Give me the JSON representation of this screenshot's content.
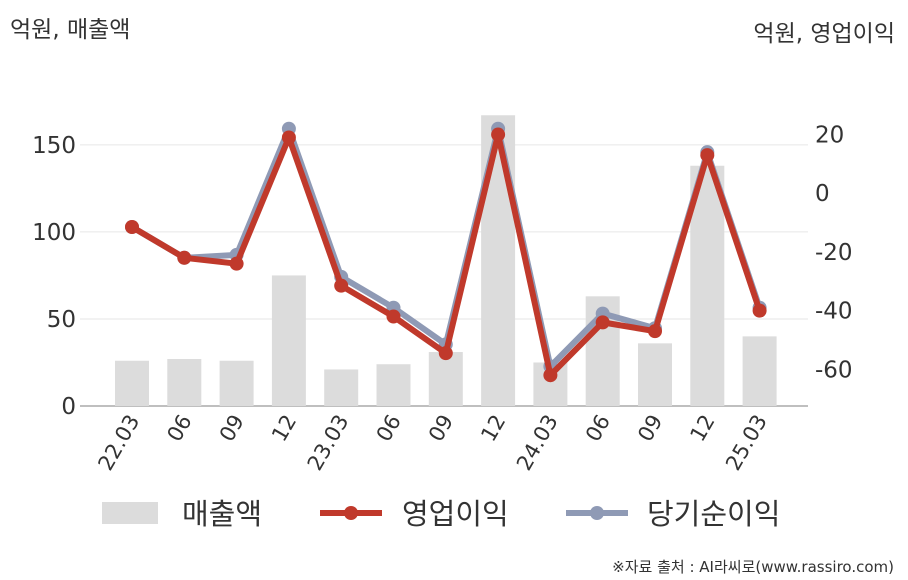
{
  "chart_data": {
    "type": "bar+line",
    "left_axis_label": "억원, 매출액",
    "right_axis_label": "억원, 영업이익",
    "categories": [
      "22.03",
      "06",
      "09",
      "12",
      "23.03",
      "06",
      "09",
      "12",
      "24.03",
      "06",
      "09",
      "12",
      "25.03"
    ],
    "left_axis": {
      "ticks": [
        0,
        50,
        100,
        150
      ],
      "range": [
        0,
        193
      ]
    },
    "right_axis": {
      "ticks": [
        -60,
        -40,
        -20,
        0,
        20
      ],
      "range": [
        -72.5,
        42
      ]
    },
    "series": [
      {
        "name": "매출액",
        "type": "bar",
        "axis": "left",
        "color": "#dcdcdc",
        "values": [
          26,
          27,
          26,
          75,
          21,
          24,
          31,
          167,
          25,
          63,
          36,
          138,
          40
        ]
      },
      {
        "name": "영업이익",
        "type": "line",
        "axis": "right",
        "color": "#c0392b",
        "values": [
          -11.5,
          -22,
          -24,
          19,
          -31.5,
          -42,
          -54.5,
          20,
          -62,
          -44,
          -47,
          13,
          -40
        ]
      },
      {
        "name": "당기순이익",
        "type": "line",
        "axis": "right",
        "color": "#8f9ab5",
        "values": [
          -11.5,
          -22,
          -21,
          22,
          -28.5,
          -39,
          -51.5,
          22,
          -59,
          -41,
          -46,
          14,
          -39
        ]
      }
    ],
    "grid": true,
    "legend_position": "bottom"
  },
  "legend": {
    "items": [
      {
        "label": "매출액",
        "kind": "bar",
        "color": "#dcdcdc"
      },
      {
        "label": "영업이익",
        "kind": "line",
        "color": "#c0392b"
      },
      {
        "label": "당기순이익",
        "kind": "line",
        "color": "#8f9ab5"
      }
    ]
  },
  "source": "※자료 출처 : AI라씨로(www.rassiro.com)"
}
